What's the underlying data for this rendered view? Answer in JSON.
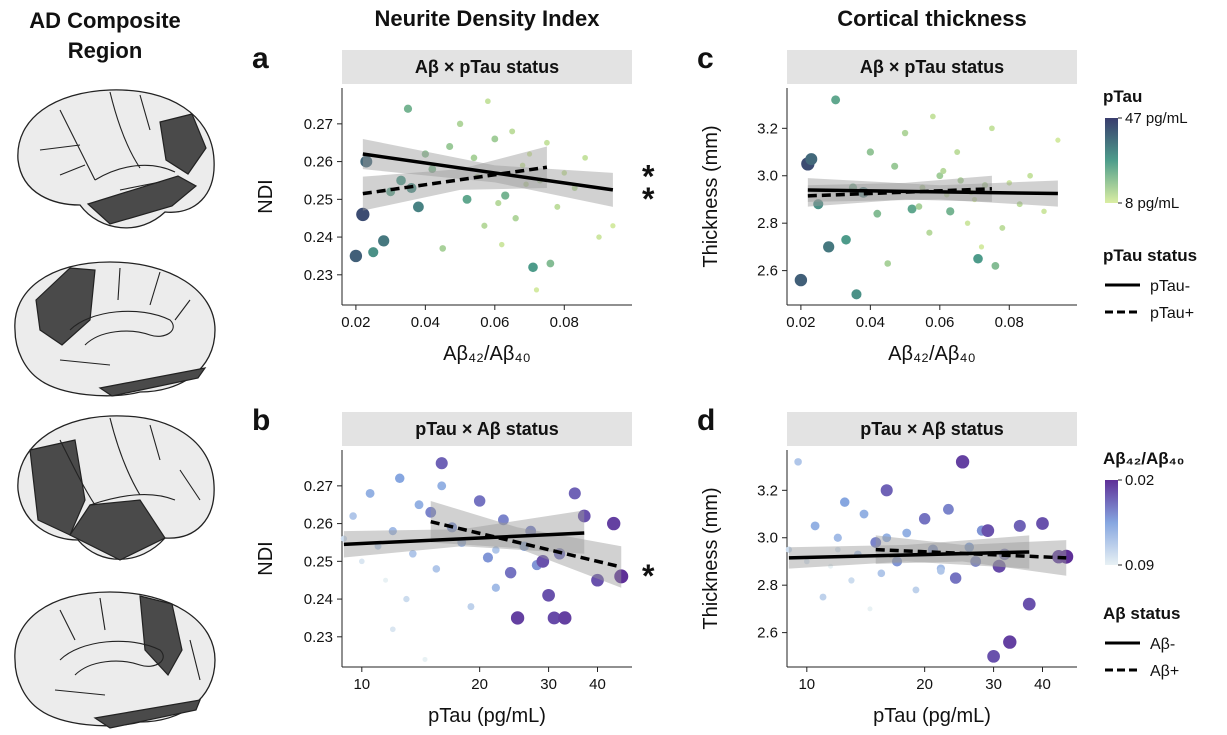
{
  "figure": {
    "region_title": "AD Composite Region",
    "columns": [
      "Neurite Density Index",
      "Cortical thickness"
    ]
  },
  "colorbars": [
    {
      "title": "pTau",
      "colors": [
        "#dbeea3",
        "#4e9d8b",
        "#393d6d"
      ],
      "clim": [
        8,
        47
      ],
      "reverse": false,
      "ticks": [
        {
          "value": 47,
          "label": "47 pg/mL"
        },
        {
          "value": 8,
          "label": "8 pg/mL"
        }
      ]
    },
    {
      "title": "Aβ₄₂/Aβ₄₀",
      "colors": [
        "#e8f1f4",
        "#86a6e0",
        "#5e2f97"
      ],
      "clim": [
        0.02,
        0.09
      ],
      "reverse": true,
      "ticks": [
        0.02,
        0.09
      ]
    }
  ],
  "line_legends": [
    {
      "title": "pTau status",
      "entries": [
        "pTau-",
        "pTau+"
      ],
      "dashed": [
        false,
        true
      ]
    },
    {
      "title": "Aβ status",
      "entries": [
        "Aβ-",
        "Aβ+"
      ],
      "dashed": [
        false,
        true
      ]
    }
  ],
  "chart_data": [
    {
      "type": "scatter",
      "panel": "a",
      "strip": "Aβ × pTau status",
      "xlabel": "Aβ₄₂/Aβ₄₀",
      "ylabel": "NDI",
      "xlog": false,
      "xlim": [
        0.016,
        0.0995
      ],
      "xticks": [
        0.02,
        0.04,
        0.06,
        0.08
      ],
      "ylim": [
        0.222,
        0.2795
      ],
      "yticks": [
        0.23,
        0.24,
        0.25,
        0.26,
        0.27
      ],
      "colorbar": 0,
      "points": {
        "x": [
          0.02,
          0.022,
          0.023,
          0.025,
          0.028,
          0.03,
          0.033,
          0.035,
          0.038,
          0.04,
          0.042,
          0.045,
          0.047,
          0.05,
          0.052,
          0.055,
          0.057,
          0.058,
          0.06,
          0.062,
          0.063,
          0.065,
          0.066,
          0.068,
          0.07,
          0.071,
          0.073,
          0.075,
          0.076,
          0.078,
          0.08,
          0.083,
          0.086,
          0.09,
          0.094,
          0.036,
          0.054,
          0.061,
          0.069,
          0.072
        ],
        "y": [
          0.235,
          0.246,
          0.26,
          0.236,
          0.239,
          0.252,
          0.255,
          0.274,
          0.248,
          0.262,
          0.258,
          0.237,
          0.264,
          0.27,
          0.25,
          0.256,
          0.243,
          0.276,
          0.266,
          0.238,
          0.251,
          0.268,
          0.245,
          0.259,
          0.262,
          0.232,
          0.255,
          0.265,
          0.233,
          0.248,
          0.257,
          0.253,
          0.261,
          0.24,
          0.243,
          0.253,
          0.261,
          0.249,
          0.254,
          0.226
        ],
        "c": [
          40,
          44,
          38,
          30,
          35,
          25,
          28,
          22,
          33,
          18,
          20,
          15,
          17,
          14,
          25,
          12,
          13,
          11,
          16,
          10,
          22,
          12,
          14,
          10,
          9,
          28,
          13,
          11,
          20,
          12,
          10,
          12,
          11,
          10,
          9,
          30,
          15,
          13,
          10,
          9
        ]
      },
      "series": [
        {
          "dashed": false,
          "x": [
            0.022,
            0.094
          ],
          "values": [
            0.262,
            0.2525
          ],
          "ci_x": [
            0.022,
            0.06,
            0.094
          ],
          "ci_lower": [
            0.258,
            0.2545,
            0.248
          ],
          "ci_upper": [
            0.266,
            0.259,
            0.257
          ],
          "annotation": "*"
        },
        {
          "dashed": true,
          "x": [
            0.022,
            0.075
          ],
          "values": [
            0.2515,
            0.2585
          ],
          "ci_x": [
            0.022,
            0.05,
            0.075
          ],
          "ci_lower": [
            0.247,
            0.2525,
            0.253
          ],
          "ci_upper": [
            0.256,
            0.258,
            0.264
          ],
          "annotation": "*"
        }
      ]
    },
    {
      "type": "scatter",
      "panel": "b",
      "strip": "pTau × Aβ status",
      "xlabel": "pTau (pg/mL)",
      "ylabel": "NDI",
      "xlog": true,
      "xlim": [
        8.9,
        49
      ],
      "xticks": [
        10,
        20,
        30,
        40
      ],
      "ylim": [
        0.222,
        0.2795
      ],
      "yticks": [
        0.23,
        0.24,
        0.25,
        0.26,
        0.27
      ],
      "colorbar": 1,
      "points": {
        "x": [
          9,
          9.5,
          10,
          10.5,
          11,
          11.5,
          12,
          12.5,
          13,
          13.5,
          14,
          14.5,
          15,
          15.5,
          16,
          17,
          18,
          19,
          20,
          21,
          22,
          23,
          24,
          25,
          26,
          27,
          28,
          30,
          31,
          32,
          33,
          35,
          37,
          40,
          44,
          46,
          12,
          16,
          22,
          29
        ],
        "y": [
          0.256,
          0.262,
          0.25,
          0.268,
          0.254,
          0.245,
          0.258,
          0.272,
          0.24,
          0.252,
          0.265,
          0.224,
          0.263,
          0.248,
          0.276,
          0.259,
          0.255,
          0.238,
          0.266,
          0.251,
          0.243,
          0.261,
          0.247,
          0.235,
          0.254,
          0.258,
          0.249,
          0.241,
          0.235,
          0.252,
          0.235,
          0.268,
          0.262,
          0.245,
          0.26,
          0.246,
          0.232,
          0.27,
          0.253,
          0.25
        ],
        "c": [
          0.08,
          0.07,
          0.085,
          0.06,
          0.075,
          0.09,
          0.065,
          0.055,
          0.08,
          0.07,
          0.06,
          0.09,
          0.045,
          0.07,
          0.035,
          0.05,
          0.06,
          0.075,
          0.04,
          0.05,
          0.065,
          0.045,
          0.04,
          0.025,
          0.055,
          0.045,
          0.05,
          0.03,
          0.028,
          0.04,
          0.025,
          0.035,
          0.03,
          0.03,
          0.025,
          0.02,
          0.085,
          0.06,
          0.07,
          0.03
        ]
      },
      "series": [
        {
          "dashed": false,
          "x": [
            9,
            37
          ],
          "values": [
            0.2545,
            0.2575
          ],
          "ci_x": [
            9,
            18,
            37
          ],
          "ci_lower": [
            0.251,
            0.254,
            0.252
          ],
          "ci_upper": [
            0.258,
            0.2585,
            0.2635
          ]
        },
        {
          "dashed": true,
          "x": [
            15,
            46
          ],
          "values": [
            0.2605,
            0.2485
          ],
          "ci_x": [
            15,
            25,
            46
          ],
          "ci_lower": [
            0.255,
            0.2535,
            0.243
          ],
          "ci_upper": [
            0.266,
            0.259,
            0.254
          ],
          "annotation": "*"
        }
      ]
    },
    {
      "type": "scatter",
      "panel": "c",
      "strip": "Aβ × pTau status",
      "xlabel": "Aβ₄₂/Aβ₄₀",
      "ylabel": "Thickness (mm)",
      "xlog": false,
      "xlim": [
        0.016,
        0.0995
      ],
      "xticks": [
        0.02,
        0.04,
        0.06,
        0.08
      ],
      "ylim": [
        2.455,
        3.37
      ],
      "yticks": [
        2.6,
        2.8,
        {
          "value": 3,
          "label": "3.0"
        },
        3.2
      ],
      "colorbar": 0,
      "points": {
        "x": [
          0.02,
          0.022,
          0.023,
          0.025,
          0.028,
          0.03,
          0.033,
          0.035,
          0.038,
          0.04,
          0.042,
          0.045,
          0.047,
          0.05,
          0.052,
          0.055,
          0.057,
          0.058,
          0.06,
          0.062,
          0.063,
          0.065,
          0.066,
          0.068,
          0.07,
          0.071,
          0.073,
          0.075,
          0.076,
          0.078,
          0.08,
          0.083,
          0.086,
          0.09,
          0.094,
          0.036,
          0.054,
          0.061,
          0.069,
          0.072
        ],
        "y": [
          2.56,
          3.05,
          3.07,
          2.88,
          2.7,
          3.32,
          2.73,
          2.95,
          2.93,
          3.1,
          2.84,
          2.63,
          3.04,
          3.18,
          2.86,
          2.95,
          2.76,
          3.25,
          3.0,
          2.92,
          2.85,
          3.1,
          2.98,
          2.8,
          2.9,
          2.65,
          2.96,
          3.2,
          2.62,
          2.78,
          2.97,
          2.88,
          3.0,
          2.85,
          3.15,
          2.5,
          2.87,
          3.02,
          2.93,
          2.7
        ],
        "c": [
          40,
          44,
          38,
          30,
          35,
          25,
          28,
          22,
          33,
          18,
          20,
          15,
          17,
          14,
          25,
          12,
          13,
          11,
          16,
          10,
          22,
          12,
          14,
          10,
          9,
          28,
          13,
          11,
          20,
          12,
          10,
          12,
          11,
          10,
          9,
          30,
          15,
          13,
          10,
          9
        ]
      },
      "series": [
        {
          "dashed": false,
          "x": [
            0.022,
            0.094
          ],
          "values": [
            2.94,
            2.925
          ],
          "ci_x": [
            0.022,
            0.06,
            0.094
          ],
          "ci_lower": [
            2.89,
            2.9,
            2.87
          ],
          "ci_upper": [
            2.99,
            2.96,
            2.98
          ]
        },
        {
          "dashed": true,
          "x": [
            0.022,
            0.075
          ],
          "values": [
            2.915,
            2.945
          ],
          "ci_x": [
            0.022,
            0.05,
            0.075
          ],
          "ci_lower": [
            2.87,
            2.9,
            2.89
          ],
          "ci_upper": [
            2.96,
            2.97,
            3.0
          ]
        }
      ]
    },
    {
      "type": "scatter",
      "panel": "d",
      "strip": "pTau × Aβ status",
      "xlabel": "pTau (pg/mL)",
      "ylabel": "Thickness (mm)",
      "xlog": true,
      "xlim": [
        8.9,
        49
      ],
      "xticks": [
        10,
        20,
        30,
        40
      ],
      "ylim": [
        2.455,
        3.37
      ],
      "yticks": [
        2.6,
        2.8,
        {
          "value": 3,
          "label": "3.0"
        },
        3.2
      ],
      "colorbar": 1,
      "points": {
        "x": [
          9,
          9.5,
          10,
          10.5,
          11,
          11.5,
          12,
          12.5,
          13,
          13.5,
          14,
          14.5,
          15,
          15.5,
          16,
          17,
          18,
          19,
          20,
          21,
          22,
          23,
          24,
          25,
          26,
          27,
          28,
          30,
          31,
          32,
          33,
          35,
          37,
          40,
          44,
          46,
          12,
          16,
          22,
          29
        ],
        "y": [
          2.95,
          3.32,
          2.9,
          3.05,
          2.75,
          2.88,
          3.0,
          3.15,
          2.82,
          2.93,
          3.1,
          2.7,
          2.98,
          2.85,
          3.2,
          2.9,
          3.02,
          2.78,
          3.08,
          2.95,
          2.87,
          3.12,
          2.83,
          3.32,
          2.96,
          2.9,
          3.03,
          2.5,
          2.88,
          2.93,
          2.56,
          3.05,
          2.72,
          3.06,
          2.92,
          2.92,
          2.95,
          3.0,
          2.86,
          3.03
        ],
        "c": [
          0.08,
          0.07,
          0.085,
          0.06,
          0.075,
          0.09,
          0.065,
          0.055,
          0.08,
          0.07,
          0.06,
          0.09,
          0.045,
          0.07,
          0.035,
          0.05,
          0.06,
          0.075,
          0.04,
          0.05,
          0.065,
          0.045,
          0.04,
          0.025,
          0.055,
          0.045,
          0.05,
          0.03,
          0.028,
          0.04,
          0.025,
          0.035,
          0.03,
          0.03,
          0.025,
          0.02,
          0.085,
          0.06,
          0.07,
          0.03
        ]
      },
      "series": [
        {
          "dashed": false,
          "x": [
            9,
            37
          ],
          "values": [
            2.915,
            2.94
          ],
          "ci_x": [
            9,
            18,
            37
          ],
          "ci_lower": [
            2.87,
            2.9,
            2.87
          ],
          "ci_upper": [
            2.96,
            2.97,
            3.01
          ]
        },
        {
          "dashed": true,
          "x": [
            15,
            46
          ],
          "values": [
            2.95,
            2.915
          ],
          "ci_x": [
            15,
            25,
            46
          ],
          "ci_lower": [
            2.89,
            2.9,
            2.84
          ],
          "ci_upper": [
            3.01,
            2.97,
            2.99
          ]
        }
      ]
    }
  ]
}
